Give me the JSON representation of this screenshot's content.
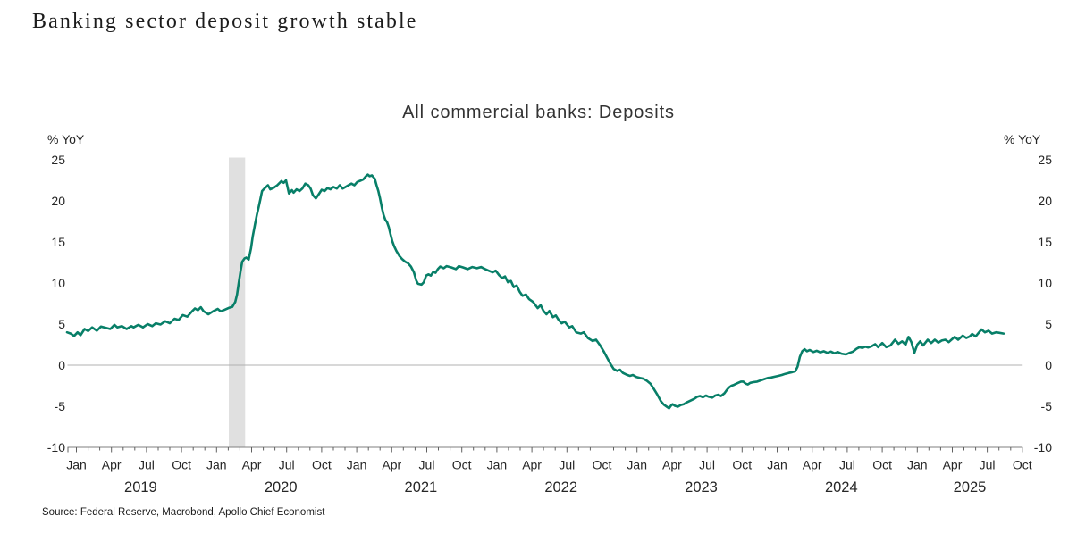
{
  "page": {
    "title": "Banking sector deposit growth stable",
    "source": "Source: Federal Reserve, Macrobond, Apollo Chief Economist"
  },
  "chart_data": {
    "type": "line",
    "title": "All commercial banks: Deposits",
    "unit_label_left": "% YoY",
    "unit_label_right": "% YoY",
    "y_axis": {
      "min": -10,
      "max": 25,
      "step": 5,
      "ticks": [
        25,
        20,
        15,
        10,
        5,
        0,
        -5,
        -10
      ]
    },
    "x_axis": {
      "start": "Jan 2019",
      "end": "Oct 2025",
      "quarter_month_labels": [
        "Jan",
        "Apr",
        "Jul",
        "Oct"
      ],
      "years": [
        2019,
        2020,
        2021,
        2022,
        2023,
        2024,
        2025
      ]
    },
    "grid": "zero-line-only",
    "legend": "none",
    "recession_band": {
      "from_month_index": 13.05,
      "to_month_index": 14.45,
      "color": "#E0E0E0"
    },
    "zero_line_color": "#B0B0B0",
    "axis_color": "#7F7F7F",
    "tick_color": "#606060",
    "series": [
      {
        "name": "All commercial banks: Deposits",
        "color": "#087F68",
        "x_unit": "months since Jan 2019",
        "points": [
          [
            -0.8,
            4.0
          ],
          [
            -0.5,
            3.85
          ],
          [
            -0.2,
            3.55
          ],
          [
            0.1,
            4.0
          ],
          [
            0.35,
            3.65
          ],
          [
            0.7,
            4.4
          ],
          [
            1.0,
            4.15
          ],
          [
            1.35,
            4.6
          ],
          [
            1.75,
            4.2
          ],
          [
            2.1,
            4.7
          ],
          [
            2.5,
            4.55
          ],
          [
            2.9,
            4.4
          ],
          [
            3.25,
            4.9
          ],
          [
            3.5,
            4.6
          ],
          [
            3.9,
            4.75
          ],
          [
            4.3,
            4.4
          ],
          [
            4.7,
            4.75
          ],
          [
            4.9,
            4.6
          ],
          [
            5.3,
            4.9
          ],
          [
            5.7,
            4.6
          ],
          [
            6.1,
            5.0
          ],
          [
            6.5,
            4.75
          ],
          [
            6.8,
            5.1
          ],
          [
            7.2,
            4.95
          ],
          [
            7.6,
            5.35
          ],
          [
            8.0,
            5.1
          ],
          [
            8.4,
            5.65
          ],
          [
            8.75,
            5.5
          ],
          [
            9.1,
            6.1
          ],
          [
            9.5,
            5.9
          ],
          [
            9.9,
            6.55
          ],
          [
            10.15,
            6.9
          ],
          [
            10.4,
            6.7
          ],
          [
            10.65,
            7.05
          ],
          [
            10.9,
            6.55
          ],
          [
            11.3,
            6.2
          ],
          [
            11.7,
            6.55
          ],
          [
            12.1,
            6.85
          ],
          [
            12.35,
            6.55
          ],
          [
            12.7,
            6.75
          ],
          [
            13.1,
            7.0
          ],
          [
            13.35,
            7.1
          ],
          [
            13.6,
            7.7
          ],
          [
            13.75,
            8.6
          ],
          [
            13.9,
            10.0
          ],
          [
            14.05,
            11.4
          ],
          [
            14.2,
            12.6
          ],
          [
            14.4,
            13.0
          ],
          [
            14.55,
            13.1
          ],
          [
            14.75,
            12.85
          ],
          [
            14.95,
            14.2
          ],
          [
            15.1,
            15.7
          ],
          [
            15.3,
            17.2
          ],
          [
            15.45,
            18.3
          ],
          [
            15.6,
            19.2
          ],
          [
            15.75,
            20.2
          ],
          [
            15.9,
            21.2
          ],
          [
            16.1,
            21.5
          ],
          [
            16.4,
            21.9
          ],
          [
            16.6,
            21.4
          ],
          [
            16.9,
            21.6
          ],
          [
            17.2,
            21.9
          ],
          [
            17.55,
            22.4
          ],
          [
            17.75,
            22.2
          ],
          [
            17.95,
            22.5
          ],
          [
            18.2,
            20.9
          ],
          [
            18.45,
            21.3
          ],
          [
            18.6,
            21.0
          ],
          [
            18.85,
            21.4
          ],
          [
            19.1,
            21.2
          ],
          [
            19.35,
            21.5
          ],
          [
            19.6,
            22.1
          ],
          [
            19.85,
            21.9
          ],
          [
            20.05,
            21.5
          ],
          [
            20.25,
            20.7
          ],
          [
            20.5,
            20.3
          ],
          [
            20.75,
            20.8
          ],
          [
            21.0,
            21.35
          ],
          [
            21.25,
            21.2
          ],
          [
            21.5,
            21.55
          ],
          [
            21.75,
            21.4
          ],
          [
            22.0,
            21.7
          ],
          [
            22.3,
            21.5
          ],
          [
            22.55,
            21.9
          ],
          [
            22.8,
            21.5
          ],
          [
            23.05,
            21.7
          ],
          [
            23.3,
            21.9
          ],
          [
            23.55,
            22.1
          ],
          [
            23.8,
            21.9
          ],
          [
            24.05,
            22.3
          ],
          [
            24.3,
            22.45
          ],
          [
            24.55,
            22.6
          ],
          [
            24.8,
            23.0
          ],
          [
            24.95,
            23.2
          ],
          [
            25.1,
            23.0
          ],
          [
            25.3,
            23.1
          ],
          [
            25.55,
            22.7
          ],
          [
            25.7,
            21.9
          ],
          [
            25.85,
            21.2
          ],
          [
            26.0,
            20.3
          ],
          [
            26.15,
            19.2
          ],
          [
            26.3,
            18.3
          ],
          [
            26.45,
            17.7
          ],
          [
            26.6,
            17.4
          ],
          [
            26.75,
            16.8
          ],
          [
            26.9,
            15.9
          ],
          [
            27.05,
            15.1
          ],
          [
            27.2,
            14.5
          ],
          [
            27.4,
            13.9
          ],
          [
            27.65,
            13.3
          ],
          [
            27.9,
            12.9
          ],
          [
            28.15,
            12.6
          ],
          [
            28.4,
            12.4
          ],
          [
            28.65,
            12.0
          ],
          [
            28.9,
            11.3
          ],
          [
            29.1,
            10.3
          ],
          [
            29.25,
            9.9
          ],
          [
            29.55,
            9.8
          ],
          [
            29.75,
            10.1
          ],
          [
            29.95,
            10.9
          ],
          [
            30.15,
            11.05
          ],
          [
            30.35,
            10.9
          ],
          [
            30.55,
            11.35
          ],
          [
            30.75,
            11.25
          ],
          [
            30.95,
            11.7
          ],
          [
            31.15,
            12.0
          ],
          [
            31.45,
            11.8
          ],
          [
            31.7,
            12.05
          ],
          [
            32.1,
            11.9
          ],
          [
            32.5,
            11.7
          ],
          [
            32.75,
            12.05
          ],
          [
            33.1,
            11.9
          ],
          [
            33.5,
            11.7
          ],
          [
            33.9,
            11.95
          ],
          [
            34.3,
            11.8
          ],
          [
            34.65,
            11.95
          ],
          [
            35.0,
            11.7
          ],
          [
            35.3,
            11.5
          ],
          [
            35.65,
            11.3
          ],
          [
            35.9,
            11.5
          ],
          [
            36.2,
            10.95
          ],
          [
            36.45,
            10.6
          ],
          [
            36.7,
            10.8
          ],
          [
            36.95,
            10.1
          ],
          [
            37.2,
            10.25
          ],
          [
            37.45,
            9.5
          ],
          [
            37.7,
            9.7
          ],
          [
            37.95,
            8.95
          ],
          [
            38.2,
            8.45
          ],
          [
            38.5,
            8.6
          ],
          [
            38.75,
            8.05
          ],
          [
            39.1,
            7.7
          ],
          [
            39.5,
            6.95
          ],
          [
            39.75,
            7.3
          ],
          [
            40.0,
            6.6
          ],
          [
            40.25,
            6.2
          ],
          [
            40.5,
            6.6
          ],
          [
            40.8,
            5.85
          ],
          [
            41.05,
            6.05
          ],
          [
            41.3,
            5.5
          ],
          [
            41.55,
            5.1
          ],
          [
            41.8,
            5.3
          ],
          [
            42.2,
            4.6
          ],
          [
            42.45,
            4.75
          ],
          [
            42.8,
            4.0
          ],
          [
            43.2,
            3.85
          ],
          [
            43.45,
            4.0
          ],
          [
            43.8,
            3.3
          ],
          [
            44.2,
            2.95
          ],
          [
            44.5,
            3.1
          ],
          [
            44.85,
            2.4
          ],
          [
            45.15,
            1.7
          ],
          [
            45.45,
            0.9
          ],
          [
            45.75,
            0.1
          ],
          [
            46.0,
            -0.45
          ],
          [
            46.3,
            -0.7
          ],
          [
            46.55,
            -0.55
          ],
          [
            46.8,
            -0.95
          ],
          [
            47.1,
            -1.15
          ],
          [
            47.4,
            -1.3
          ],
          [
            47.65,
            -1.2
          ],
          [
            47.95,
            -1.45
          ],
          [
            48.25,
            -1.55
          ],
          [
            48.55,
            -1.65
          ],
          [
            48.85,
            -1.9
          ],
          [
            49.15,
            -2.25
          ],
          [
            49.45,
            -2.9
          ],
          [
            49.75,
            -3.6
          ],
          [
            50.05,
            -4.4
          ],
          [
            50.3,
            -4.8
          ],
          [
            50.55,
            -5.05
          ],
          [
            50.75,
            -5.25
          ],
          [
            50.9,
            -4.95
          ],
          [
            51.05,
            -4.75
          ],
          [
            51.25,
            -4.95
          ],
          [
            51.5,
            -5.05
          ],
          [
            51.75,
            -4.85
          ],
          [
            52.0,
            -4.75
          ],
          [
            52.3,
            -4.5
          ],
          [
            52.6,
            -4.3
          ],
          [
            52.9,
            -4.1
          ],
          [
            53.15,
            -3.85
          ],
          [
            53.4,
            -3.75
          ],
          [
            53.65,
            -3.9
          ],
          [
            53.9,
            -3.7
          ],
          [
            54.15,
            -3.85
          ],
          [
            54.45,
            -3.95
          ],
          [
            54.7,
            -3.7
          ],
          [
            54.95,
            -3.6
          ],
          [
            55.2,
            -3.75
          ],
          [
            55.5,
            -3.4
          ],
          [
            55.7,
            -3.0
          ],
          [
            55.9,
            -2.7
          ],
          [
            56.1,
            -2.5
          ],
          [
            56.3,
            -2.4
          ],
          [
            56.6,
            -2.2
          ],
          [
            56.9,
            -2.0
          ],
          [
            57.1,
            -2.0
          ],
          [
            57.3,
            -2.25
          ],
          [
            57.5,
            -2.35
          ],
          [
            57.7,
            -2.15
          ],
          [
            58.0,
            -2.05
          ],
          [
            58.3,
            -2.0
          ],
          [
            58.6,
            -1.85
          ],
          [
            58.9,
            -1.7
          ],
          [
            59.2,
            -1.55
          ],
          [
            59.5,
            -1.5
          ],
          [
            59.8,
            -1.4
          ],
          [
            60.1,
            -1.3
          ],
          [
            60.4,
            -1.2
          ],
          [
            60.7,
            -1.05
          ],
          [
            61.0,
            -0.95
          ],
          [
            61.3,
            -0.85
          ],
          [
            61.55,
            -0.75
          ],
          [
            61.75,
            -0.2
          ],
          [
            61.95,
            1.0
          ],
          [
            62.15,
            1.7
          ],
          [
            62.35,
            1.95
          ],
          [
            62.55,
            1.7
          ],
          [
            62.8,
            1.85
          ],
          [
            63.1,
            1.6
          ],
          [
            63.4,
            1.75
          ],
          [
            63.7,
            1.55
          ],
          [
            64.0,
            1.7
          ],
          [
            64.3,
            1.5
          ],
          [
            64.6,
            1.65
          ],
          [
            64.9,
            1.45
          ],
          [
            65.2,
            1.6
          ],
          [
            65.5,
            1.4
          ],
          [
            65.9,
            1.3
          ],
          [
            66.2,
            1.5
          ],
          [
            66.5,
            1.65
          ],
          [
            66.8,
            2.0
          ],
          [
            67.05,
            2.2
          ],
          [
            67.3,
            2.1
          ],
          [
            67.55,
            2.25
          ],
          [
            67.8,
            2.15
          ],
          [
            68.1,
            2.3
          ],
          [
            68.4,
            2.55
          ],
          [
            68.65,
            2.2
          ],
          [
            69.0,
            2.7
          ],
          [
            69.35,
            2.2
          ],
          [
            69.7,
            2.4
          ],
          [
            70.1,
            3.1
          ],
          [
            70.4,
            2.6
          ],
          [
            70.7,
            2.9
          ],
          [
            71.0,
            2.5
          ],
          [
            71.25,
            3.45
          ],
          [
            71.5,
            2.8
          ],
          [
            71.75,
            1.5
          ],
          [
            72.0,
            2.5
          ],
          [
            72.25,
            2.9
          ],
          [
            72.5,
            2.4
          ],
          [
            72.9,
            3.1
          ],
          [
            73.2,
            2.7
          ],
          [
            73.5,
            3.1
          ],
          [
            73.8,
            2.75
          ],
          [
            74.1,
            3.0
          ],
          [
            74.4,
            3.1
          ],
          [
            74.7,
            2.8
          ],
          [
            75.0,
            3.2
          ],
          [
            75.2,
            3.45
          ],
          [
            75.5,
            3.1
          ],
          [
            75.9,
            3.6
          ],
          [
            76.2,
            3.3
          ],
          [
            76.5,
            3.5
          ],
          [
            76.7,
            3.8
          ],
          [
            77.0,
            3.5
          ],
          [
            77.5,
            4.35
          ],
          [
            77.8,
            4.0
          ],
          [
            78.1,
            4.2
          ],
          [
            78.4,
            3.85
          ],
          [
            78.75,
            4.0
          ],
          [
            79.0,
            3.95
          ],
          [
            79.4,
            3.85
          ]
        ]
      }
    ]
  }
}
